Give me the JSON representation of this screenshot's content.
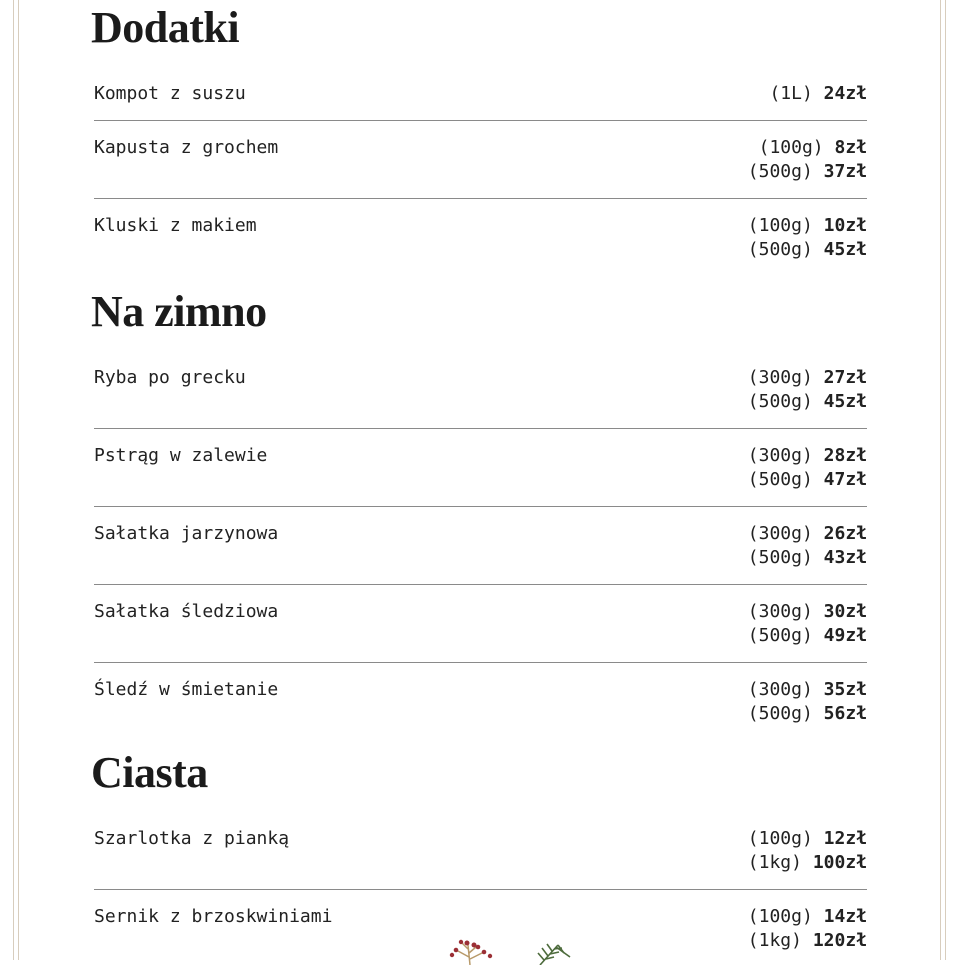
{
  "sections": [
    {
      "title": "Dodatki",
      "items": [
        {
          "name": "Kompot z suszu",
          "prices": [
            {
              "size": "(1L)",
              "price": "24zł"
            }
          ]
        },
        {
          "name": "Kapusta z grochem",
          "prices": [
            {
              "size": "(100g)",
              "price": "8zł"
            },
            {
              "size": "(500g)",
              "price": "37zł"
            }
          ]
        },
        {
          "name": "Kluski z makiem",
          "prices": [
            {
              "size": "(100g)",
              "price": "10zł"
            },
            {
              "size": "(500g)",
              "price": "45zł"
            }
          ]
        }
      ]
    },
    {
      "title": "Na zimno",
      "items": [
        {
          "name": "Ryba po grecku",
          "prices": [
            {
              "size": "(300g)",
              "price": "27zł"
            },
            {
              "size": "(500g)",
              "price": "45zł"
            }
          ]
        },
        {
          "name": "Pstrąg w zalewie",
          "prices": [
            {
              "size": "(300g)",
              "price": "28zł"
            },
            {
              "size": "(500g)",
              "price": "47zł"
            }
          ]
        },
        {
          "name": "Sałatka jarzynowa",
          "prices": [
            {
              "size": "(300g)",
              "price": "26zł"
            },
            {
              "size": "(500g)",
              "price": "43zł"
            }
          ]
        },
        {
          "name": "Sałatka śledziowa",
          "prices": [
            {
              "size": "(300g)",
              "price": "30zł"
            },
            {
              "size": "(500g)",
              "price": "49zł"
            }
          ]
        },
        {
          "name": "Śledź w śmietanie",
          "prices": [
            {
              "size": "(300g)",
              "price": "35zł"
            },
            {
              "size": "(500g)",
              "price": "56zł"
            }
          ]
        }
      ]
    },
    {
      "title": "Ciasta",
      "items": [
        {
          "name": "Szarlotka z pianką",
          "prices": [
            {
              "size": "(100g)",
              "price": "12zł"
            },
            {
              "size": "(1kg)",
              "price": "100zł"
            }
          ]
        },
        {
          "name": "Sernik z brzoskwiniami",
          "prices": [
            {
              "size": "(100g)",
              "price": "14zł"
            },
            {
              "size": "(1kg)",
              "price": "120zł"
            }
          ]
        }
      ]
    }
  ],
  "colors": {
    "border": "#d8cdbd",
    "divider": "#8a8a8a",
    "berry": "#9b2f35",
    "pine": "#4d6b3c"
  }
}
